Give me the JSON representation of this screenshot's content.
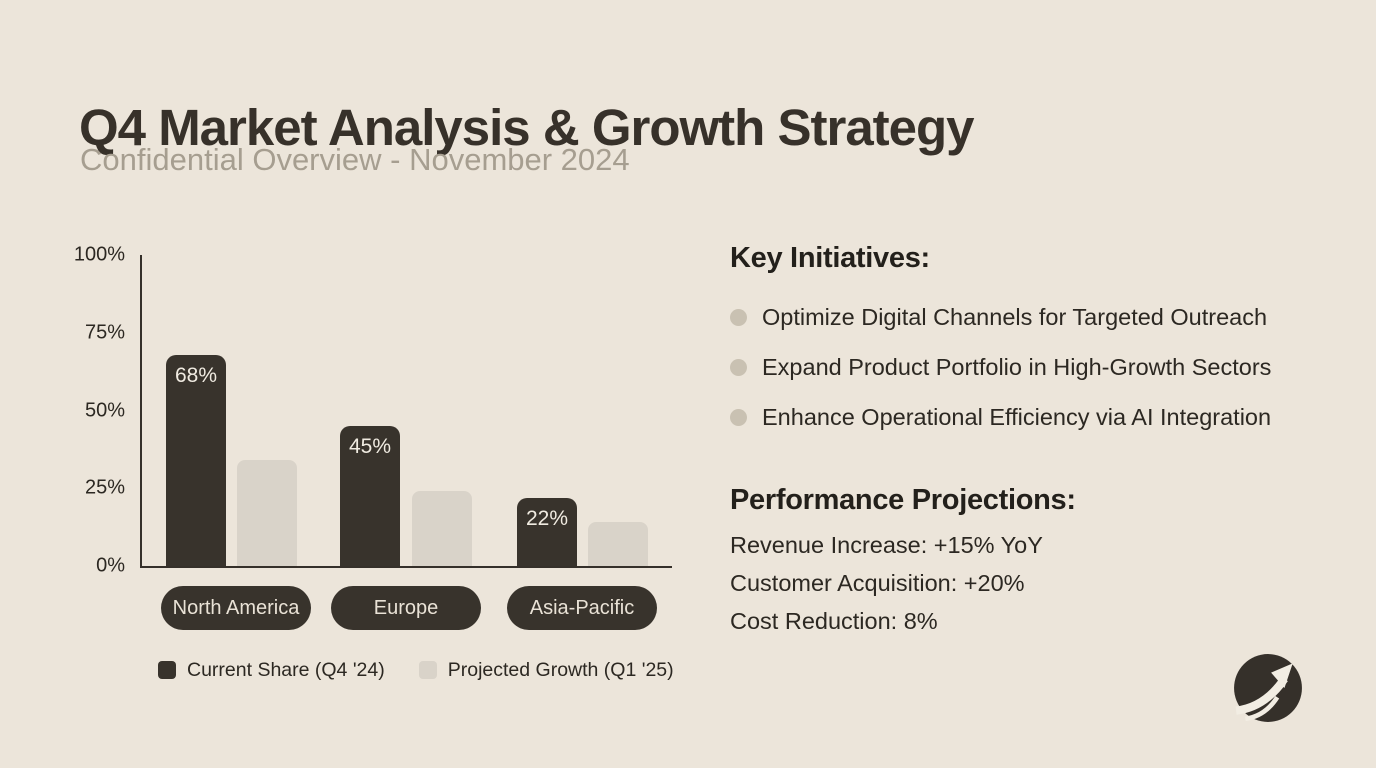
{
  "slide": {
    "title": "Q4 Market Analysis & Growth Strategy",
    "subtitle": "Confidential Overview - November 2024"
  },
  "chart_data": {
    "type": "bar",
    "categories": [
      "North America",
      "Europe",
      "Asia-Pacific"
    ],
    "series": [
      {
        "name": "Current Share (Q4 '24)",
        "values": [
          68,
          45,
          22
        ],
        "data_labels": [
          "68%",
          "45%",
          "22%"
        ],
        "color": "#38332c"
      },
      {
        "name": "Projected Growth (Q1 '25)",
        "values": [
          34,
          24,
          14
        ],
        "data_labels": [],
        "color": "#d9d3c9"
      }
    ],
    "y_ticks": [
      "100%",
      "75%",
      "50%",
      "25%",
      "0%"
    ],
    "ylim": [
      0,
      100
    ],
    "grid": false,
    "legend_position": "bottom"
  },
  "key_initiatives": {
    "heading": "Key Initiatives:",
    "items": [
      "Optimize Digital Channels for Targeted Outreach",
      "Expand Product Portfolio in High-Growth Sectors",
      "Enhance Operational Efficiency via AI Integration"
    ]
  },
  "performance_projections": {
    "heading": "Performance Projections:",
    "items": [
      "Revenue Increase: +15% YoY",
      "Customer Acquisition: +20%",
      "Cost Reduction: 8%"
    ]
  },
  "logo": {
    "icon": "growth-arrow-logo"
  },
  "colors": {
    "background": "#ece5da",
    "title_text": "#37312a",
    "subtitle_text": "#a69e90",
    "dark_accent": "#38332c",
    "light_bar": "#d9d3c9",
    "body_text": "#2c2822",
    "bullet": "#c9c1b2",
    "bar_value_text": "#f0ebe1",
    "pill_text": "#e9e2d6"
  }
}
